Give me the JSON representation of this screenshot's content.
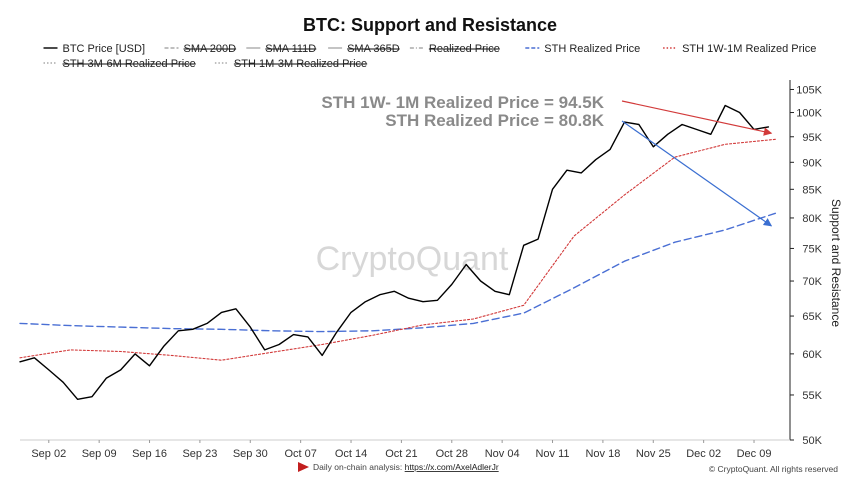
{
  "chart_data": {
    "type": "line",
    "title": "BTC: Support and Resistance",
    "ylabel": "Support and Resistance",
    "xlabel": "",
    "y_scale": "log",
    "ylim": [
      50000,
      106000
    ],
    "y_ticks": [
      {
        "value": 105000,
        "label": "105K"
      },
      {
        "value": 100000,
        "label": "100K"
      },
      {
        "value": 95000,
        "label": "95K"
      },
      {
        "value": 90000,
        "label": "90K"
      },
      {
        "value": 85000,
        "label": "85K"
      },
      {
        "value": 80000,
        "label": "80K"
      },
      {
        "value": 75000,
        "label": "75K"
      },
      {
        "value": 70000,
        "label": "70K"
      },
      {
        "value": 65000,
        "label": "65K"
      },
      {
        "value": 60000,
        "label": "60K"
      },
      {
        "value": 55000,
        "label": "55K"
      },
      {
        "value": 50000,
        "label": "50K"
      }
    ],
    "x_ticks": [
      "Sep 02",
      "Sep 09",
      "Sep 16",
      "Sep 23",
      "Sep 30",
      "Oct 07",
      "Oct 14",
      "Oct 21",
      "Oct 28",
      "Nov 04",
      "Nov 11",
      "Nov 18",
      "Nov 25",
      "Dec 02",
      "Dec 09"
    ],
    "legend_items": [
      {
        "label": "BTC Price [USD]",
        "color": "#000000",
        "style": "solid",
        "hidden": false
      },
      {
        "label": "SMA 200D",
        "color": "#999999",
        "style": "dashed",
        "hidden": true
      },
      {
        "label": "SMA 111D",
        "color": "#999999",
        "style": "solid",
        "hidden": true
      },
      {
        "label": "SMA 365D",
        "color": "#999999",
        "style": "solid",
        "hidden": true
      },
      {
        "label": "Realized Price",
        "color": "#999999",
        "style": "dashdot",
        "hidden": true
      },
      {
        "label": "STH Realized Price",
        "color": "#4a6fd4",
        "style": "dashed",
        "hidden": false
      },
      {
        "label": "STH 1W-1M Realized Price",
        "color": "#d23a3a",
        "style": "dotted",
        "hidden": false
      },
      {
        "label": "STH 3M-6M Realized Price",
        "color": "#999999",
        "style": "dotted",
        "hidden": true
      },
      {
        "label": "STH 1M-3M Realized Price",
        "color": "#999999",
        "style": "dotted",
        "hidden": true
      }
    ],
    "annotations": [
      {
        "text": "STH 1W- 1M Realized Price = 94.5K"
      },
      {
        "text": "STH Realized Price = 80.8K"
      }
    ],
    "watermark": "CryptoQuant",
    "series": [
      {
        "name": "BTC Price [USD]",
        "color": "#000000",
        "x": [
          "2024-08-29",
          "2024-08-31",
          "2024-09-02",
          "2024-09-04",
          "2024-09-06",
          "2024-09-08",
          "2024-09-10",
          "2024-09-12",
          "2024-09-14",
          "2024-09-16",
          "2024-09-18",
          "2024-09-20",
          "2024-09-22",
          "2024-09-24",
          "2024-09-26",
          "2024-09-28",
          "2024-09-30",
          "2024-10-02",
          "2024-10-04",
          "2024-10-06",
          "2024-10-08",
          "2024-10-10",
          "2024-10-12",
          "2024-10-14",
          "2024-10-16",
          "2024-10-18",
          "2024-10-20",
          "2024-10-22",
          "2024-10-24",
          "2024-10-26",
          "2024-10-28",
          "2024-10-30",
          "2024-11-01",
          "2024-11-03",
          "2024-11-05",
          "2024-11-07",
          "2024-11-09",
          "2024-11-11",
          "2024-11-13",
          "2024-11-15",
          "2024-11-17",
          "2024-11-19",
          "2024-11-21",
          "2024-11-23",
          "2024-11-25",
          "2024-11-27",
          "2024-11-29",
          "2024-12-01",
          "2024-12-03",
          "2024-12-05",
          "2024-12-07",
          "2024-12-09",
          "2024-12-11"
        ],
        "values": [
          59000,
          59500,
          58000,
          56500,
          54500,
          54800,
          57000,
          58000,
          60000,
          58500,
          61000,
          63000,
          63200,
          64000,
          65500,
          66000,
          63500,
          60500,
          61200,
          62500,
          62200,
          59800,
          62800,
          65500,
          67000,
          68000,
          68500,
          67500,
          67000,
          67200,
          69500,
          72500,
          70000,
          68500,
          68000,
          75500,
          76500,
          85000,
          88500,
          88000,
          90500,
          92500,
          98000,
          97500,
          93000,
          95500,
          97500,
          96500,
          95500,
          101500,
          100000,
          96500,
          97000
        ]
      },
      {
        "name": "STH Realized Price",
        "color": "#4a6fd4",
        "x": [
          "2024-08-29",
          "2024-09-05",
          "2024-09-12",
          "2024-09-19",
          "2024-09-26",
          "2024-10-03",
          "2024-10-10",
          "2024-10-17",
          "2024-10-24",
          "2024-10-31",
          "2024-11-07",
          "2024-11-14",
          "2024-11-21",
          "2024-11-28",
          "2024-12-05",
          "2024-12-12"
        ],
        "values": [
          64000,
          63700,
          63500,
          63300,
          63200,
          63000,
          62900,
          63000,
          63400,
          64000,
          65400,
          69000,
          73000,
          76000,
          78000,
          80800
        ]
      },
      {
        "name": "STH 1W-1M Realized Price",
        "color": "#d23a3a",
        "x": [
          "2024-08-29",
          "2024-09-05",
          "2024-09-12",
          "2024-09-19",
          "2024-09-26",
          "2024-10-03",
          "2024-10-10",
          "2024-10-17",
          "2024-10-24",
          "2024-10-31",
          "2024-11-07",
          "2024-11-14",
          "2024-11-21",
          "2024-11-28",
          "2024-12-05",
          "2024-12-12"
        ],
        "values": [
          59500,
          60500,
          60300,
          59800,
          59200,
          60200,
          61200,
          62400,
          63800,
          64600,
          66500,
          77000,
          84000,
          91000,
          93500,
          94500
        ]
      }
    ]
  },
  "footer": {
    "analysis_label": "Daily on-chain analysis: ",
    "analysis_link": "https://x.com/AxelAdlerJr",
    "copyright": "© CryptoQuant. All rights reserved"
  }
}
